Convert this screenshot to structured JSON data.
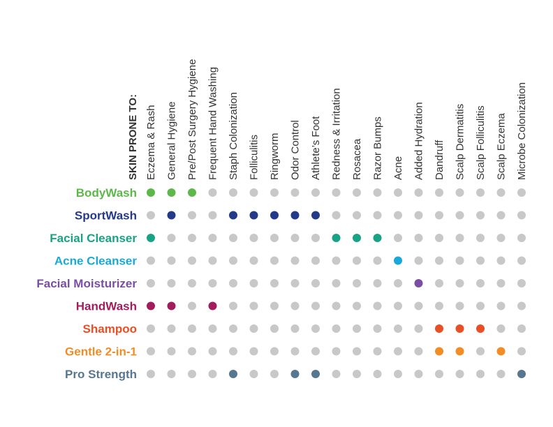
{
  "chart_data": {
    "type": "table",
    "heading": "SKIN PRONE TO:",
    "columns": [
      "Eczema & Rash",
      "General Hygiene",
      "Pre/Post Surgery Hygiene",
      "Frequent Hand Washing",
      "Staph Colonization",
      "Folliculitis",
      "Ringworm",
      "Odor Control",
      "Athlete’s Foot",
      "Redness & Irritation",
      "Rosacea",
      "Razor Bumps",
      "Acne",
      "Added Hydration",
      "Dandruff",
      "Scalp Dermatitis",
      "Scalp Folliculitis",
      "Scalp Eczema",
      "Microbe Colonization"
    ],
    "inactive_color": "#c8c8c8",
    "rows": [
      {
        "name": "BodyWash",
        "color": "#5db84a",
        "active": [
          0,
          1,
          2
        ]
      },
      {
        "name": "SportWash",
        "color": "#233a8a",
        "active": [
          1,
          4,
          5,
          6,
          7,
          8
        ]
      },
      {
        "name": "Facial Cleanser",
        "color": "#17a384",
        "active": [
          0,
          9,
          10,
          11
        ]
      },
      {
        "name": "Acne Cleanser",
        "color": "#19a9d8",
        "active": [
          12
        ]
      },
      {
        "name": "Facial Moisturizer",
        "color": "#7b4ea3",
        "active": [
          13
        ]
      },
      {
        "name": "HandWash",
        "color": "#a31d5c",
        "active": [
          0,
          1,
          3
        ]
      },
      {
        "name": "Shampoo",
        "color": "#e94f25",
        "active": [
          14,
          15,
          16
        ]
      },
      {
        "name": "Gentle 2-in-1",
        "color": "#f28c25",
        "active": [
          14,
          15,
          17
        ]
      },
      {
        "name": "Pro Strength",
        "color": "#56778f",
        "active": [
          4,
          7,
          8,
          18
        ]
      }
    ]
  }
}
